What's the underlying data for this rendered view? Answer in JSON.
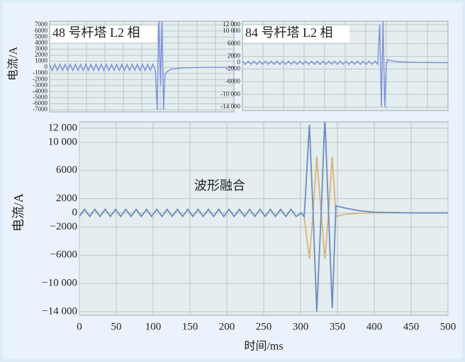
{
  "chart_data": [
    {
      "type": "line",
      "title": "48 号杆塔 L2 相",
      "y_label": "电流/A",
      "grid": true,
      "xlim": [
        0,
        500
      ],
      "ylim": [
        -7350,
        7600
      ],
      "yticks": [
        -7000,
        -6000,
        -5000,
        -4000,
        -3000,
        -2000,
        -1000,
        0,
        1000,
        2000,
        3000,
        4000,
        5000,
        6000,
        7000
      ],
      "x": [
        0,
        7,
        14,
        21,
        28,
        35,
        42,
        49,
        56,
        63,
        70,
        77,
        84,
        91,
        98,
        105,
        112,
        119,
        126,
        133,
        140,
        147,
        154,
        161,
        168,
        175,
        182,
        189,
        196,
        203,
        210,
        217,
        224,
        231,
        238,
        245,
        252,
        259,
        266,
        273,
        280,
        287,
        292,
        296,
        301,
        305,
        309,
        313,
        318,
        330,
        360,
        420,
        500
      ],
      "series": [
        {
          "color": "#7d8fdc",
          "values": [
            500,
            -500,
            500,
            -500,
            500,
            -500,
            500,
            -500,
            500,
            -500,
            500,
            -500,
            500,
            -500,
            500,
            -500,
            500,
            -500,
            500,
            -500,
            500,
            -500,
            500,
            -500,
            500,
            -500,
            500,
            -500,
            500,
            -500,
            500,
            -500,
            500,
            -500,
            500,
            -500,
            500,
            -500,
            500,
            -500,
            500,
            -500,
            -7000,
            8000,
            -3000,
            8000,
            -7000,
            -1200,
            -700,
            -300,
            -100,
            0,
            0
          ]
        }
      ]
    },
    {
      "type": "line",
      "title": "84 号杆塔 L2 相",
      "grid": true,
      "xlim": [
        0,
        500
      ],
      "ylim": [
        -15100,
        13100
      ],
      "yticks": [
        {
          "value": 12000,
          "label": "12 000"
        },
        {
          "value": 10000,
          "label": "10 000"
        },
        6000,
        2000,
        0,
        -2000,
        -6000,
        {
          "value": -10000,
          "label": "-10 000"
        },
        {
          "value": -14000,
          "label": "-14 000"
        }
      ],
      "x": [
        0,
        7,
        14,
        21,
        28,
        35,
        42,
        49,
        56,
        63,
        70,
        77,
        84,
        91,
        98,
        105,
        112,
        119,
        126,
        133,
        140,
        147,
        154,
        161,
        168,
        175,
        182,
        189,
        196,
        203,
        210,
        217,
        224,
        231,
        238,
        245,
        252,
        259,
        266,
        273,
        280,
        287,
        294,
        301,
        308,
        315,
        322,
        329,
        334,
        338,
        342,
        346,
        350,
        354,
        360,
        380,
        420,
        500
      ],
      "series": [
        {
          "color": "#7d8fdc",
          "values": [
            500,
            -500,
            500,
            -500,
            500,
            -500,
            500,
            -500,
            500,
            -500,
            500,
            -500,
            500,
            -500,
            500,
            -500,
            500,
            -500,
            500,
            -500,
            500,
            -500,
            500,
            -500,
            500,
            -500,
            500,
            -500,
            500,
            -500,
            500,
            -500,
            500,
            -500,
            500,
            -500,
            500,
            -500,
            500,
            -500,
            500,
            -500,
            500,
            -500,
            500,
            -500,
            500,
            -500,
            12000,
            -14000,
            13500,
            -14000,
            -500,
            1000,
            700,
            300,
            100,
            0
          ]
        }
      ]
    },
    {
      "type": "line",
      "annotation": "波形融合",
      "y_label": "电流/A",
      "x_label": "时间/ms",
      "grid": true,
      "xlim": [
        0,
        500
      ],
      "ylim": [
        -14500,
        12900
      ],
      "xticks": [
        0,
        50,
        100,
        150,
        200,
        250,
        300,
        350,
        400,
        450,
        500
      ],
      "yticks": [
        {
          "value": 12000,
          "label": "12 000"
        },
        {
          "value": 10000,
          "label": "10 000"
        },
        6000,
        2000,
        0,
        {
          "value": -2000,
          "label": "−2000"
        },
        {
          "value": -6000,
          "label": "−6000"
        },
        {
          "value": -10000,
          "label": "−10 000"
        },
        {
          "value": -14000,
          "label": "−14 000"
        }
      ],
      "x": [
        0,
        7,
        14,
        21,
        28,
        35,
        42,
        49,
        56,
        63,
        70,
        77,
        84,
        91,
        98,
        105,
        112,
        119,
        126,
        133,
        140,
        147,
        154,
        161,
        168,
        175,
        182,
        189,
        196,
        203,
        210,
        217,
        224,
        231,
        238,
        245,
        252,
        259,
        266,
        273,
        280,
        287,
        294,
        301,
        305,
        312,
        317,
        322,
        328,
        333,
        338,
        343,
        348,
        360,
        380,
        400,
        450,
        500
      ],
      "series": [
        {
          "color": "#d9b574",
          "values": [
            -500,
            500,
            -500,
            500,
            -500,
            500,
            -500,
            500,
            -500,
            500,
            -500,
            500,
            -500,
            500,
            -500,
            500,
            -500,
            500,
            -500,
            500,
            -500,
            500,
            -500,
            500,
            -500,
            500,
            -500,
            500,
            -500,
            500,
            -500,
            500,
            -500,
            500,
            -500,
            500,
            -500,
            500,
            -500,
            500,
            -500,
            500,
            -500,
            0,
            -600,
            -6500,
            0,
            8000,
            0,
            -6500,
            0,
            8000,
            -500,
            -200,
            -50,
            0,
            0,
            0
          ]
        },
        {
          "color": "#6b8cc4",
          "values": [
            -500,
            500,
            -500,
            500,
            -500,
            500,
            -500,
            500,
            -500,
            500,
            -500,
            500,
            -500,
            500,
            -500,
            500,
            -500,
            500,
            -500,
            500,
            -500,
            500,
            -500,
            500,
            -500,
            500,
            -500,
            500,
            -500,
            500,
            -500,
            500,
            -500,
            500,
            -500,
            500,
            -500,
            500,
            -500,
            500,
            -500,
            500,
            -500,
            0,
            -500,
            12500,
            0,
            -14000,
            0,
            13500,
            0,
            -13500,
            1000,
            700,
            300,
            100,
            0,
            0
          ]
        }
      ]
    }
  ]
}
